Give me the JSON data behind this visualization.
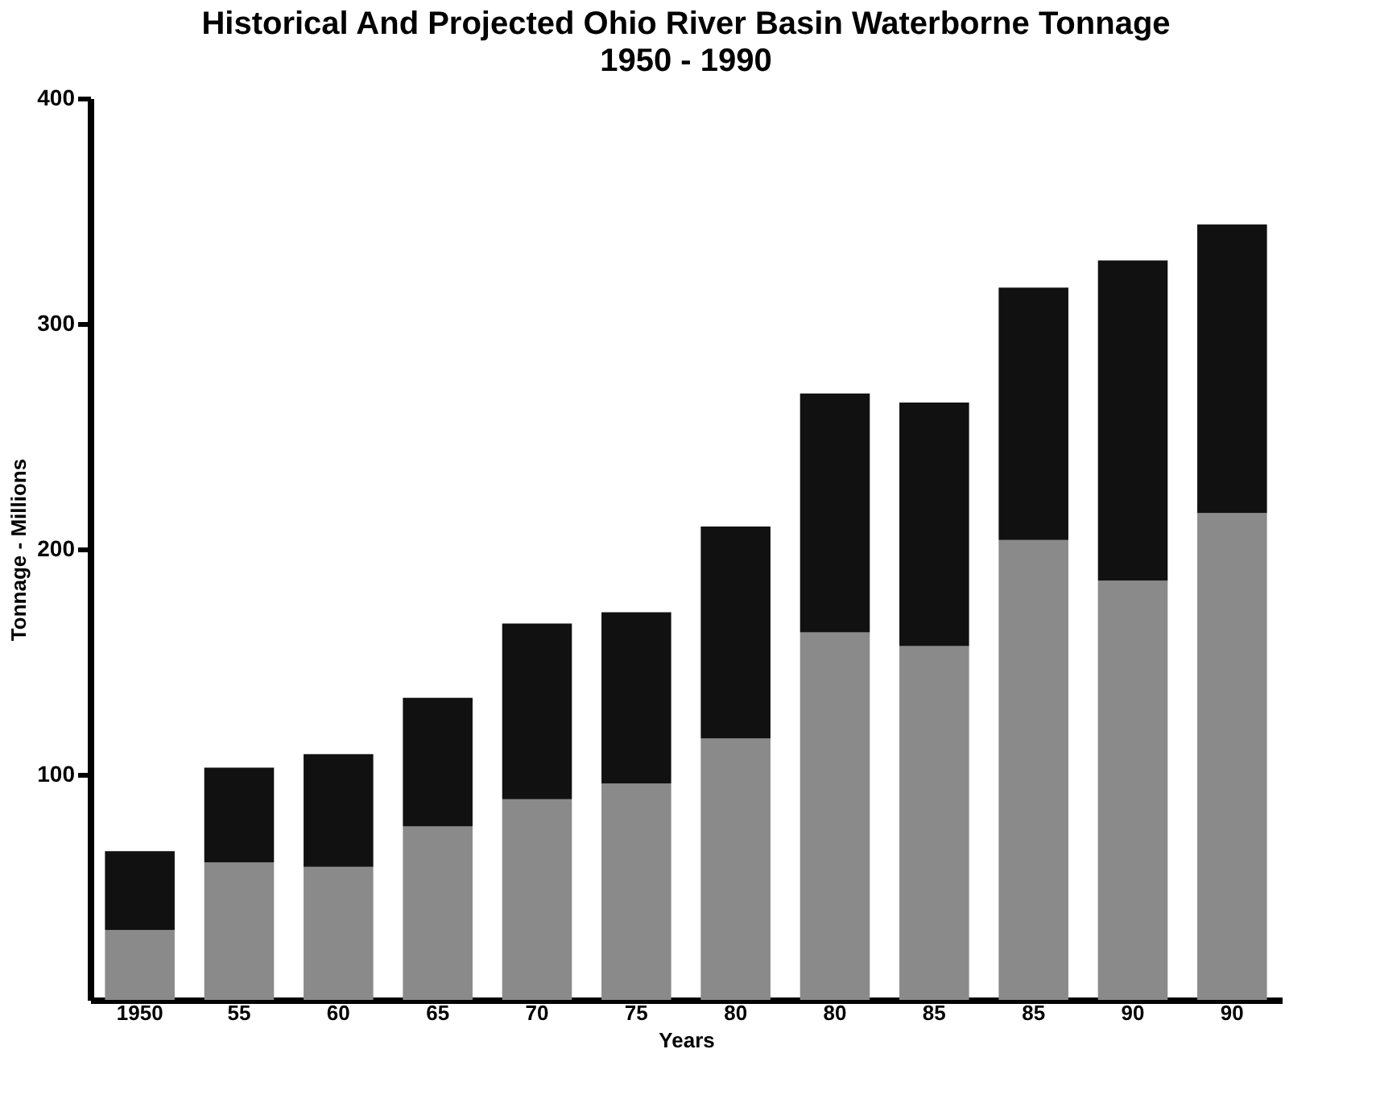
{
  "chart_data": {
    "type": "bar",
    "title": "Historical And Projected Ohio River Basin Waterborne Tonnage",
    "subtitle": "1950 - 1990",
    "xlabel": "Years",
    "ylabel": "Tonnage - Millions",
    "categories": [
      "1950",
      "55",
      "60",
      "65",
      "70",
      "75",
      "80",
      "80",
      "85",
      "85",
      "90",
      "90"
    ],
    "stacked": true,
    "ylim": [
      0,
      400
    ],
    "yticks": [
      100,
      200,
      300,
      400
    ],
    "grid": false,
    "series": [
      {
        "color": "#8a8a8a",
        "values": [
          31,
          61,
          59,
          77,
          89,
          96,
          116,
          163,
          157,
          204,
          186,
          216
        ]
      },
      {
        "color": "#111111",
        "values": [
          35,
          42,
          50,
          57,
          78,
          76,
          94,
          106,
          108,
          112,
          142,
          128
        ]
      }
    ]
  }
}
